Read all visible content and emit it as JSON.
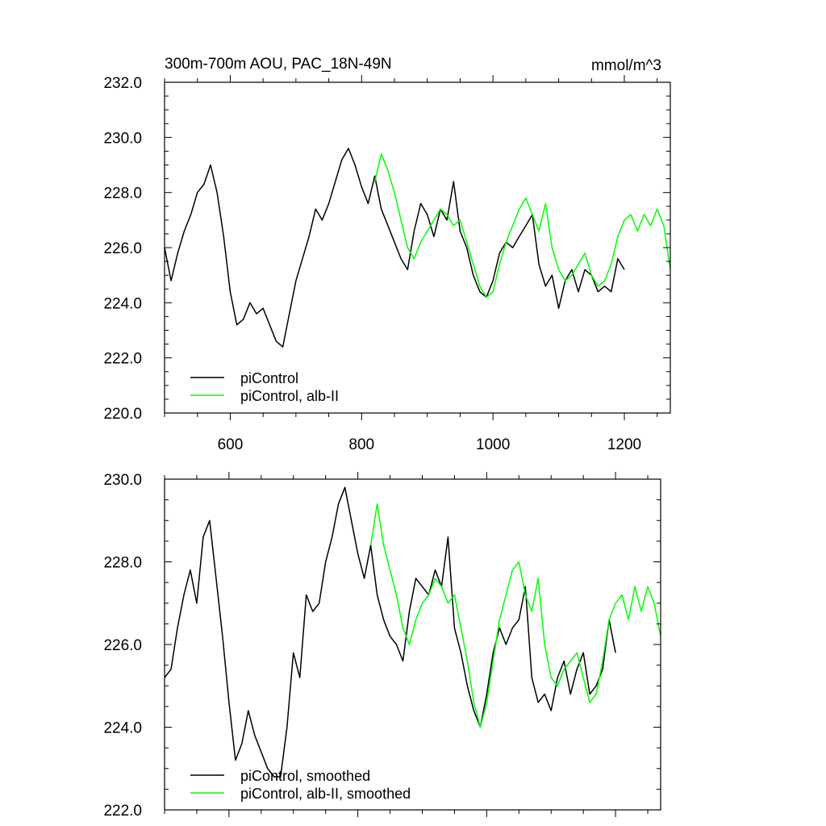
{
  "figure": {
    "title": "300m-700m AOU, PAC_18N-49N",
    "units": "mmol/m^3"
  },
  "colors": {
    "control": "#000000",
    "alb": "#00ff00",
    "axis": "#000000",
    "background": "#ffffff"
  },
  "chart_data": [
    {
      "type": "line",
      "title": "300m-700m AOU, PAC_18N-49N",
      "units_label": "mmol/m^3",
      "xlim": [
        500,
        1270
      ],
      "ylim": [
        220,
        232
      ],
      "x_ticks": [
        600,
        800,
        1000,
        1200
      ],
      "x_tick_labels": [
        "600",
        "800",
        "1000",
        "1200"
      ],
      "y_ticks": [
        220,
        222,
        224,
        226,
        228,
        230,
        232
      ],
      "y_tick_labels": [
        "220.0",
        "222.0",
        "224.0",
        "226.0",
        "228.0",
        "230.0",
        "232.0"
      ],
      "grid": false,
      "legend_position": "bottom-left",
      "series": [
        {
          "name": "piControl",
          "color": "#000000",
          "x": [
            500,
            510,
            520,
            530,
            540,
            550,
            560,
            570,
            580,
            590,
            600,
            610,
            620,
            630,
            640,
            650,
            660,
            670,
            680,
            690,
            700,
            710,
            720,
            730,
            740,
            750,
            760,
            770,
            780,
            790,
            800,
            810,
            820,
            830,
            840,
            850,
            860,
            870,
            880,
            890,
            900,
            910,
            920,
            930,
            940,
            950,
            960,
            970,
            980,
            990,
            1000,
            1010,
            1020,
            1030,
            1040,
            1050,
            1060,
            1070,
            1080,
            1090,
            1100,
            1110,
            1120,
            1130,
            1140,
            1150,
            1160,
            1170,
            1180,
            1190,
            1200
          ],
          "y": [
            226.0,
            224.8,
            225.8,
            226.6,
            227.2,
            228.0,
            228.3,
            229.0,
            228.0,
            226.4,
            224.4,
            223.2,
            223.4,
            224.0,
            223.6,
            223.8,
            223.2,
            222.6,
            222.4,
            223.6,
            224.8,
            225.6,
            226.4,
            227.4,
            227.0,
            227.6,
            228.4,
            229.2,
            229.6,
            229.0,
            228.2,
            227.6,
            228.6,
            227.4,
            226.8,
            226.2,
            225.6,
            225.2,
            226.6,
            227.6,
            227.2,
            226.4,
            227.4,
            227.0,
            228.4,
            226.6,
            226.0,
            225.0,
            224.4,
            224.2,
            224.8,
            225.8,
            226.2,
            226.0,
            226.4,
            226.8,
            227.2,
            225.4,
            224.6,
            225.0,
            223.8,
            224.8,
            225.2,
            224.4,
            225.2,
            225.0,
            224.4,
            224.6,
            224.4,
            225.6,
            225.2
          ]
        },
        {
          "name": "piControl, alb-II",
          "color": "#00ff00",
          "x": [
            820,
            830,
            840,
            850,
            860,
            870,
            880,
            890,
            900,
            910,
            920,
            930,
            940,
            950,
            960,
            970,
            980,
            990,
            1000,
            1010,
            1020,
            1030,
            1040,
            1050,
            1060,
            1070,
            1080,
            1090,
            1100,
            1110,
            1120,
            1130,
            1140,
            1150,
            1160,
            1170,
            1180,
            1190,
            1200,
            1210,
            1220,
            1230,
            1240,
            1250,
            1260,
            1270
          ],
          "y": [
            228.4,
            229.4,
            228.8,
            228.0,
            227.0,
            226.0,
            225.6,
            226.2,
            226.6,
            227.0,
            227.4,
            227.2,
            226.8,
            227.0,
            226.2,
            225.4,
            224.6,
            224.2,
            224.4,
            225.4,
            226.2,
            226.8,
            227.4,
            227.8,
            227.2,
            226.6,
            227.6,
            226.0,
            225.2,
            224.8,
            225.0,
            225.4,
            225.8,
            225.0,
            224.6,
            224.8,
            225.4,
            226.4,
            227.0,
            227.2,
            226.6,
            227.2,
            226.8,
            227.4,
            226.8,
            225.2
          ]
        }
      ]
    },
    {
      "type": "line",
      "xlim": [
        500,
        1270
      ],
      "ylim": [
        222,
        230
      ],
      "x_ticks": [
        600,
        800,
        1000,
        1200
      ],
      "y_ticks": [
        222,
        224,
        226,
        228,
        230
      ],
      "y_tick_labels": [
        "222.0",
        "224.0",
        "226.0",
        "228.0",
        "230.0"
      ],
      "grid": false,
      "legend_position": "bottom-left",
      "series": [
        {
          "name": "piControl, smoothed",
          "color": "#000000",
          "x": [
            500,
            510,
            520,
            530,
            540,
            550,
            560,
            570,
            580,
            590,
            600,
            610,
            620,
            630,
            640,
            650,
            660,
            670,
            680,
            690,
            700,
            710,
            720,
            730,
            740,
            750,
            760,
            770,
            780,
            790,
            800,
            810,
            820,
            830,
            840,
            850,
            860,
            870,
            880,
            890,
            900,
            910,
            920,
            930,
            940,
            950,
            960,
            970,
            980,
            990,
            1000,
            1010,
            1020,
            1030,
            1040,
            1050,
            1060,
            1070,
            1080,
            1090,
            1100,
            1110,
            1120,
            1130,
            1140,
            1150,
            1160,
            1170,
            1180,
            1190,
            1200
          ],
          "y": [
            225.2,
            225.4,
            226.4,
            227.2,
            227.8,
            227.0,
            228.6,
            229.0,
            227.6,
            226.2,
            224.6,
            223.2,
            223.6,
            224.4,
            223.8,
            223.4,
            223.0,
            222.8,
            222.8,
            224.0,
            225.8,
            225.2,
            227.2,
            226.8,
            227.0,
            228.0,
            228.6,
            229.4,
            229.8,
            229.0,
            228.2,
            227.6,
            228.4,
            227.2,
            226.6,
            226.2,
            226.0,
            225.6,
            226.8,
            227.6,
            227.4,
            227.2,
            227.8,
            227.4,
            228.6,
            226.4,
            225.8,
            225.0,
            224.4,
            224.0,
            224.8,
            225.8,
            226.4,
            226.0,
            226.4,
            226.6,
            227.4,
            225.2,
            224.6,
            224.8,
            224.4,
            225.2,
            225.6,
            224.8,
            225.4,
            225.8,
            224.8,
            225.0,
            225.4,
            226.6,
            225.8
          ]
        },
        {
          "name": "piControl, alb-II, smoothed",
          "color": "#00ff00",
          "x": [
            820,
            830,
            840,
            850,
            860,
            870,
            880,
            890,
            900,
            910,
            920,
            930,
            940,
            950,
            960,
            970,
            980,
            990,
            1000,
            1010,
            1020,
            1030,
            1040,
            1050,
            1060,
            1070,
            1080,
            1090,
            1100,
            1110,
            1120,
            1130,
            1140,
            1150,
            1160,
            1170,
            1180,
            1190,
            1200,
            1210,
            1220,
            1230,
            1240,
            1250,
            1260,
            1270
          ],
          "y": [
            228.4,
            229.4,
            228.4,
            227.8,
            227.2,
            226.4,
            226.0,
            226.6,
            227.0,
            227.2,
            227.6,
            227.4,
            227.0,
            227.2,
            226.4,
            225.6,
            224.6,
            224.0,
            224.6,
            225.6,
            226.6,
            227.2,
            227.8,
            228.0,
            227.2,
            226.8,
            227.6,
            226.0,
            225.2,
            225.0,
            225.4,
            225.6,
            225.8,
            225.2,
            224.6,
            224.8,
            225.6,
            226.6,
            227.0,
            227.2,
            226.6,
            227.4,
            226.8,
            227.4,
            227.0,
            226.2
          ]
        }
      ]
    }
  ]
}
